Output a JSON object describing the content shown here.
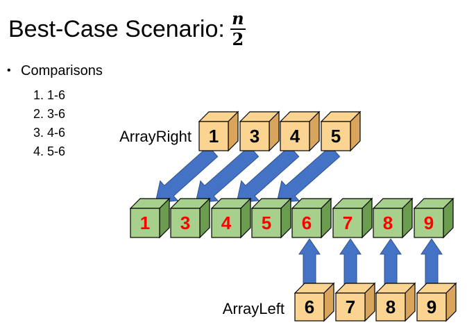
{
  "title": {
    "text": "Best-Case Scenario:",
    "fraction_numerator": "n",
    "fraction_denominator": "2"
  },
  "bullet": "Comparisons",
  "comparisons": [
    {
      "index": "1.",
      "pair": "1-6"
    },
    {
      "index": "2.",
      "pair": "3-6"
    },
    {
      "index": "3.",
      "pair": "4-6"
    },
    {
      "index": "4.",
      "pair": "5-6"
    }
  ],
  "array_right": {
    "label": "ArrayRight",
    "values": [
      "1",
      "3",
      "4",
      "5"
    ]
  },
  "merged": {
    "values": [
      "1",
      "3",
      "4",
      "5",
      "6",
      "7",
      "8",
      "9"
    ]
  },
  "array_left": {
    "label": "ArrayLeft",
    "values": [
      "6",
      "7",
      "8",
      "9"
    ]
  },
  "colors": {
    "orange_box": "#FAD490",
    "orange_dark": "#D9A55C",
    "green_box": "#A8D08D",
    "green_dark": "#6B9C50",
    "arrow": "#4472C4",
    "merged_text": "#FF0000"
  }
}
